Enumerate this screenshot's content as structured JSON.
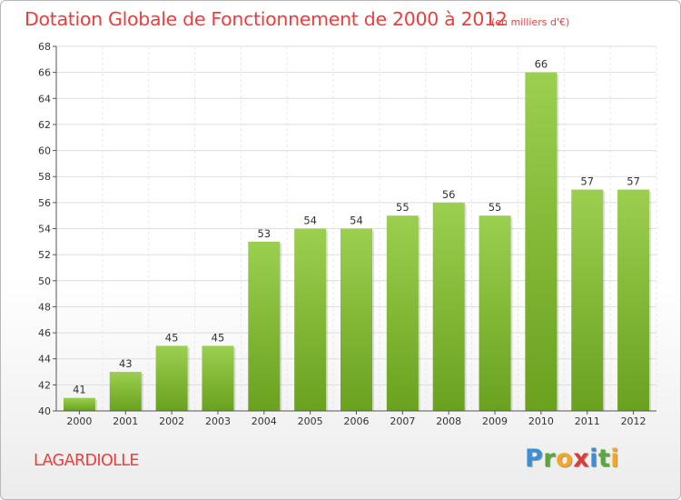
{
  "title": "Dotation Globale de Fonctionnement de 2000 à 2012",
  "subtitle": "(en milliers d'€)",
  "commune": "LAGARDIOLLE",
  "logo": {
    "letters": [
      "P",
      "r",
      "o",
      "x",
      "i",
      "t",
      "i"
    ],
    "colors": [
      "#3a8fd8",
      "#5aa83a",
      "#f5a623",
      "#d6403a",
      "#3a8fd8",
      "#5aa83a",
      "#f5a623"
    ]
  },
  "colors": {
    "bar_top": "#9ccf4f",
    "bar_bottom": "#6aa11f",
    "title": "#ee3d3b",
    "grid": "#dddddd"
  },
  "chart_data": {
    "type": "bar",
    "categories": [
      "2000",
      "2001",
      "2002",
      "2003",
      "2004",
      "2005",
      "2006",
      "2007",
      "2008",
      "2009",
      "2010",
      "2011",
      "2012"
    ],
    "values": [
      41,
      43,
      45,
      45,
      53,
      54,
      54,
      55,
      56,
      55,
      66,
      57,
      57
    ],
    "ylim": [
      40,
      68
    ],
    "yticks": [
      40,
      42,
      44,
      46,
      48,
      50,
      52,
      54,
      56,
      58,
      60,
      62,
      64,
      66,
      68
    ],
    "grid": true,
    "data_labels": true
  }
}
